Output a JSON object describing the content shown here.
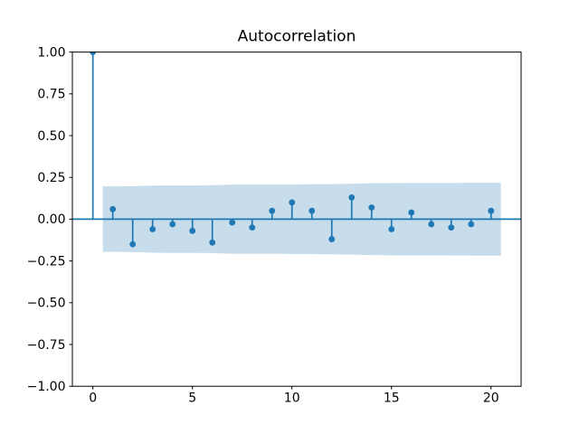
{
  "chart_data": {
    "type": "scatter",
    "subtype": "stem-autocorrelation",
    "title": "Autocorrelation",
    "xlabel": "",
    "ylabel": "",
    "x": [
      0,
      1,
      2,
      3,
      4,
      5,
      6,
      7,
      8,
      9,
      10,
      11,
      12,
      13,
      14,
      15,
      16,
      17,
      18,
      19,
      20
    ],
    "values": [
      1.0,
      0.06,
      -0.15,
      -0.06,
      -0.03,
      -0.07,
      -0.14,
      -0.02,
      -0.05,
      0.05,
      0.1,
      0.05,
      -0.12,
      0.13,
      0.07,
      -0.06,
      0.04,
      -0.03,
      -0.05,
      -0.03,
      0.05
    ],
    "confidence_band": {
      "x": [
        0.5,
        1,
        2,
        3,
        4,
        5,
        6,
        7,
        8,
        9,
        10,
        11,
        12,
        13,
        14,
        15,
        16,
        17,
        18,
        19,
        20,
        20.5
      ],
      "upper": [
        0.196,
        0.196,
        0.197,
        0.201,
        0.202,
        0.202,
        0.203,
        0.207,
        0.207,
        0.207,
        0.208,
        0.209,
        0.21,
        0.212,
        0.215,
        0.216,
        0.217,
        0.217,
        0.217,
        0.218,
        0.218,
        0.218
      ],
      "lower": [
        -0.196,
        -0.196,
        -0.197,
        -0.201,
        -0.202,
        -0.202,
        -0.203,
        -0.207,
        -0.207,
        -0.207,
        -0.208,
        -0.209,
        -0.21,
        -0.212,
        -0.215,
        -0.216,
        -0.217,
        -0.217,
        -0.217,
        -0.218,
        -0.218,
        -0.218
      ]
    },
    "xlim": [
      -1.03,
      21.51
    ],
    "ylim": [
      -1.0,
      1.0
    ],
    "xticks": {
      "values": [
        0,
        5,
        10,
        15,
        20
      ],
      "labels": [
        "0",
        "5",
        "10",
        "15",
        "20"
      ]
    },
    "yticks": {
      "values": [
        1.0,
        0.75,
        0.5,
        0.25,
        0.0,
        -0.25,
        -0.5,
        -0.75,
        -1.0
      ],
      "labels": [
        "1.00",
        "0.75",
        "0.50",
        "0.25",
        "0.00",
        "−0.25",
        "−0.50",
        "−0.75",
        "−1.00"
      ]
    },
    "grid": false,
    "legend": "none",
    "colors": {
      "stem": "#1f77b4",
      "marker": "#1f77b4",
      "zero_line": "#1f77b4",
      "band_fill": "#1f77b4",
      "band_alpha": 0.25,
      "axes": "#000000",
      "text": "#000000",
      "background": "#ffffff"
    }
  }
}
